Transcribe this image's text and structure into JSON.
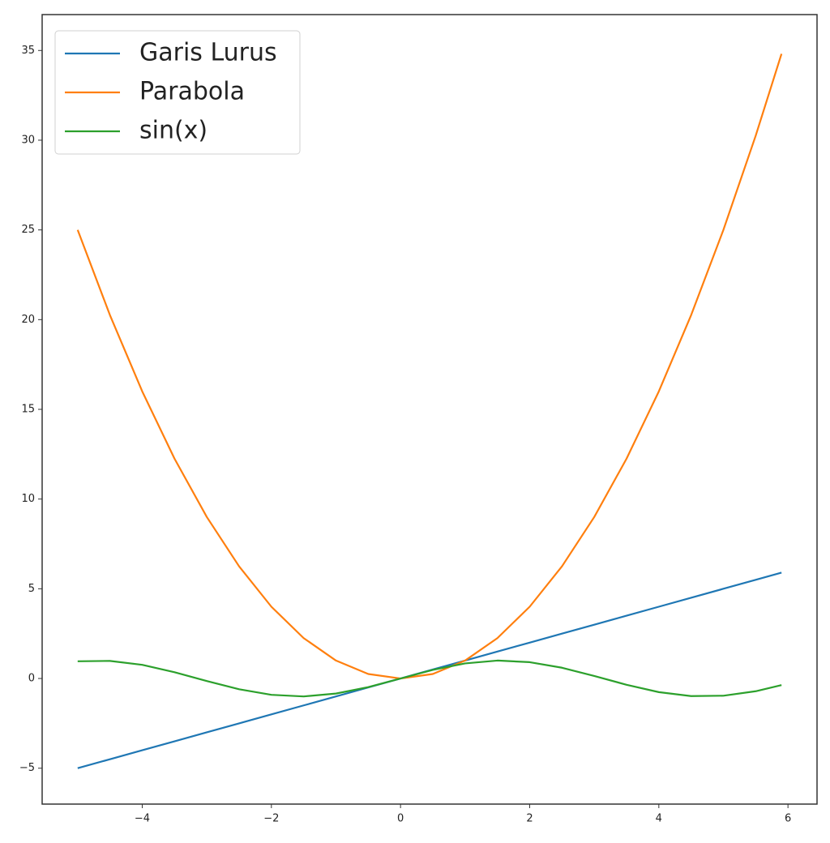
{
  "chart_data": {
    "type": "line",
    "x": [
      -5,
      -4.5,
      -4,
      -3.5,
      -3,
      -2.5,
      -2,
      -1.5,
      -1,
      -0.5,
      0,
      0.5,
      1,
      1.5,
      2,
      2.5,
      3,
      3.5,
      4,
      4.5,
      5,
      5.5,
      5.9
    ],
    "series": [
      {
        "name": "Garis Lurus",
        "color": "#1f77b4",
        "values": [
          -5,
          -4.5,
          -4,
          -3.5,
          -3,
          -2.5,
          -2,
          -1.5,
          -1,
          -0.5,
          0,
          0.5,
          1,
          1.5,
          2,
          2.5,
          3,
          3.5,
          4,
          4.5,
          5,
          5.5,
          5.9
        ]
      },
      {
        "name": "Parabola",
        "color": "#ff7f0e",
        "values": [
          25,
          20.25,
          16,
          12.25,
          9,
          6.25,
          4,
          2.25,
          1,
          0.25,
          0,
          0.25,
          1,
          2.25,
          4,
          6.25,
          9,
          12.25,
          16,
          20.25,
          25,
          30.25,
          34.81
        ]
      },
      {
        "name": "sin(x)",
        "color": "#2ca02c",
        "values": [
          0.96,
          0.98,
          0.76,
          0.35,
          -0.14,
          -0.6,
          -0.91,
          -1.0,
          -0.84,
          -0.48,
          0,
          0.48,
          0.84,
          1.0,
          0.91,
          0.6,
          0.14,
          -0.35,
          -0.76,
          -0.98,
          -0.96,
          -0.71,
          -0.37
        ]
      }
    ],
    "xlim": [
      -5.55,
      6.45
    ],
    "ylim": [
      -7.0,
      37.0
    ],
    "xticks": [
      {
        "value": -4,
        "label": "−4"
      },
      {
        "value": -2,
        "label": "−2"
      },
      0,
      2,
      4,
      6
    ],
    "yticks": [
      {
        "value": -5,
        "label": "−5"
      },
      0,
      5,
      10,
      15,
      20,
      25,
      30,
      35
    ],
    "legend": "upper left",
    "grid": false
  }
}
